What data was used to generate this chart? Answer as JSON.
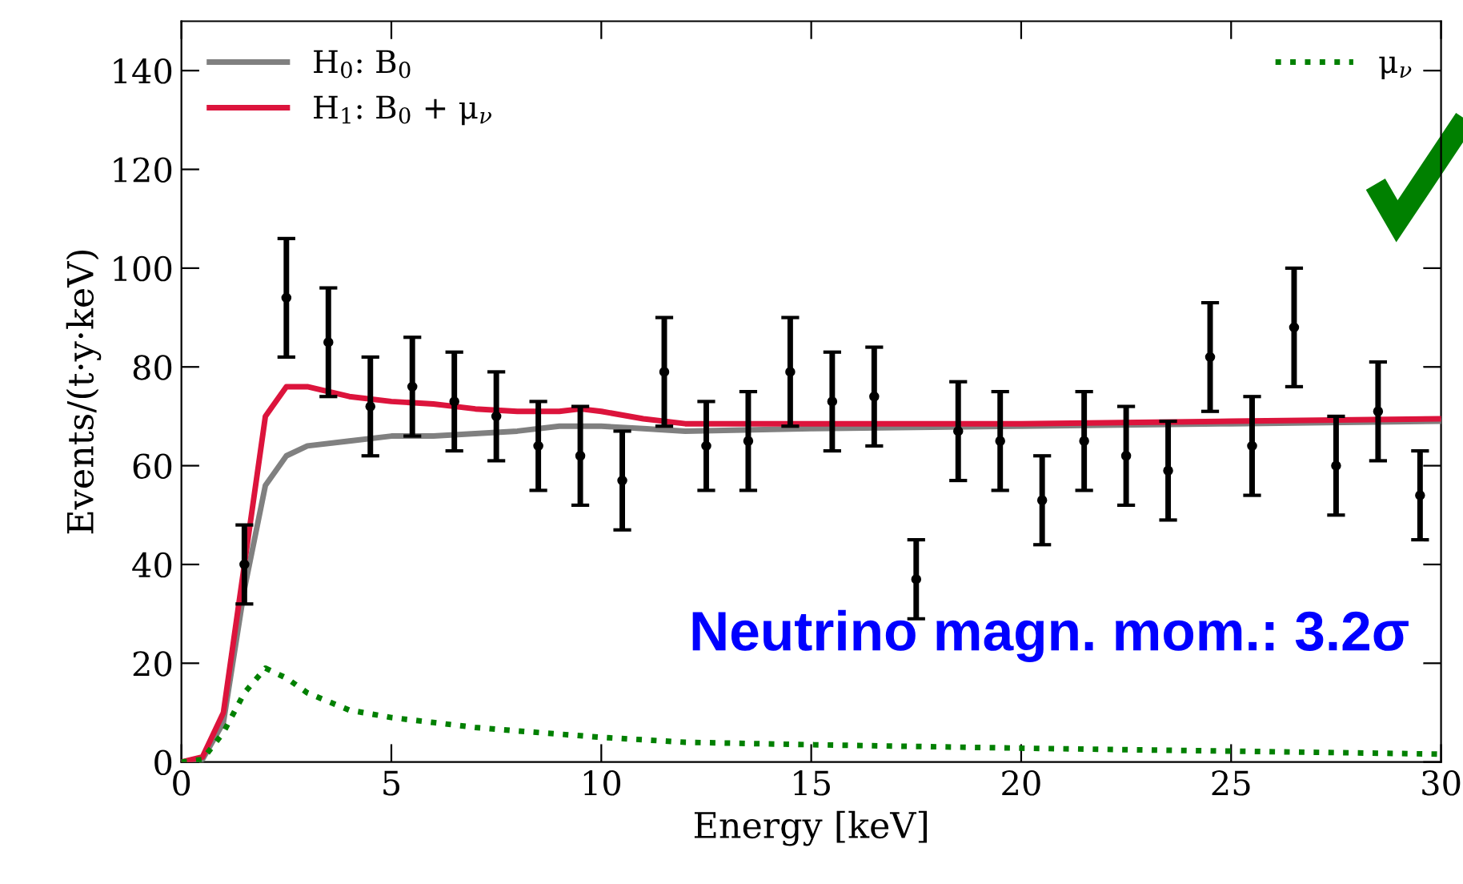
{
  "chart_data": {
    "type": "line",
    "xlabel": "Energy [keV]",
    "ylabel": "Events/(t·y·keV)",
    "xlim": [
      0,
      30
    ],
    "ylim": [
      0,
      150
    ],
    "xticks": [
      0,
      5,
      10,
      15,
      20,
      25,
      30
    ],
    "yticks": [
      0,
      20,
      40,
      60,
      80,
      100,
      120,
      140
    ],
    "grid": false,
    "legend": "top left",
    "line_style": "solid",
    "annotations": [
      "Neutrino magn. mom.: 3.2σ"
    ],
    "series": [
      {
        "name": "H$_{0}$: B$_{0}$",
        "color": "#808080",
        "x": [
          0,
          0.5,
          1,
          1.5,
          2,
          2.5,
          3,
          4,
          5,
          6,
          7,
          8,
          9,
          10,
          11,
          12,
          15,
          20,
          25,
          30
        ],
        "values": [
          0,
          0.5,
          8,
          35,
          56,
          62,
          64,
          65,
          66,
          66,
          66.5,
          67,
          68,
          68,
          67.5,
          67,
          67.5,
          68,
          68.5,
          69
        ]
      },
      {
        "name": "H$_{1}$: B$_{0}$ + μ$_{ν}$",
        "color": "#dc143c",
        "x": [
          0,
          0.5,
          1,
          1.5,
          2,
          2.5,
          3,
          4,
          5,
          6,
          7,
          8,
          9,
          9.5,
          10,
          11,
          12,
          15,
          20,
          25,
          30
        ],
        "values": [
          0,
          1,
          10,
          40,
          70,
          76,
          76,
          74,
          73,
          72.5,
          71.5,
          71,
          71,
          71.5,
          71,
          69.5,
          68.5,
          68.5,
          68.5,
          69,
          69.5
        ]
      },
      {
        "name": "μ$_{ν}$",
        "color": "#008000",
        "line_style": "dotted",
        "x": [
          0,
          0.5,
          1,
          1.5,
          2,
          2.5,
          3,
          4,
          5,
          6,
          7,
          8,
          10,
          12,
          15,
          20,
          25,
          30
        ],
        "values": [
          0,
          0.5,
          6,
          14,
          19,
          17,
          14,
          10.5,
          9,
          8,
          7,
          6.3,
          5,
          4,
          3.5,
          2.8,
          2.2,
          1.6
        ]
      },
      {
        "type": "scatter",
        "color": "#000000",
        "marker": "circle",
        "x": [
          1.5,
          2.5,
          3.5,
          4.5,
          5.5,
          6.5,
          7.5,
          8.5,
          9.5,
          10.5,
          11.5,
          12.5,
          13.5,
          14.5,
          15.5,
          16.5,
          17.5,
          18.5,
          19.5,
          20.5,
          21.5,
          22.5,
          23.5,
          24.5,
          25.5,
          26.5,
          27.5,
          28.5,
          29.5
        ],
        "values": [
          40,
          94,
          85,
          72,
          76,
          73,
          70,
          64,
          62,
          57,
          79,
          64,
          65,
          79,
          73,
          74,
          37,
          67,
          65,
          53,
          65,
          62,
          59,
          82,
          64,
          88,
          60,
          71,
          54
        ],
        "errors": [
          8,
          12,
          11,
          10,
          10,
          10,
          9,
          9,
          10,
          10,
          11,
          9,
          10,
          11,
          10,
          10,
          8,
          10,
          10,
          9,
          10,
          10,
          10,
          11,
          10,
          12,
          10,
          10,
          9
        ]
      }
    ]
  }
}
